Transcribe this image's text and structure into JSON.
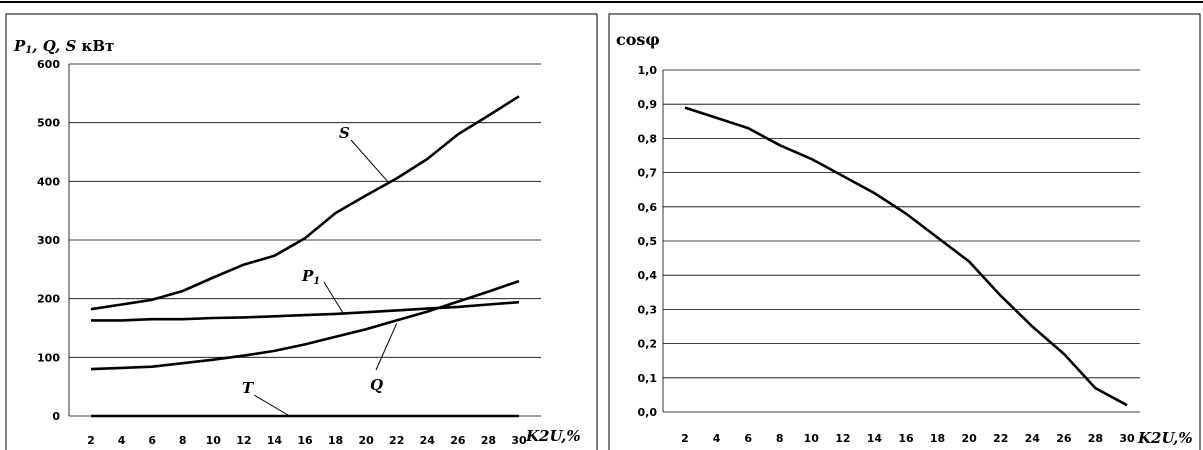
{
  "chart_data": [
    {
      "type": "line",
      "title": "кВт",
      "title_symbols": [
        "P",
        "1",
        ", Q, S "
      ],
      "xlabel": "K2U,%",
      "ylabel": "",
      "x": [
        2,
        4,
        6,
        8,
        10,
        12,
        14,
        16,
        18,
        20,
        22,
        24,
        26,
        28,
        30
      ],
      "xticks": [
        "2",
        "4",
        "6",
        "8",
        "10",
        "12",
        "14",
        "16",
        "18",
        "20",
        "22",
        "24",
        "26",
        "28",
        "30"
      ],
      "ylim": [
        0,
        600
      ],
      "yticks": [
        "0",
        "100",
        "200",
        "300",
        "400",
        "500",
        "600"
      ],
      "grid": true,
      "series": [
        {
          "name": "S",
          "values": [
            182,
            190,
            198,
            213,
            236,
            258,
            273,
            303,
            346,
            376,
            405,
            438,
            480,
            512,
            545
          ]
        },
        {
          "name": "P",
          "subscript": "1",
          "values": [
            163,
            163,
            165,
            165,
            167,
            168,
            170,
            172,
            174,
            177,
            180,
            183,
            186,
            190,
            194
          ]
        },
        {
          "name": "Q",
          "values": [
            80,
            82,
            84,
            90,
            96,
            103,
            111,
            122,
            135,
            148,
            163,
            178,
            195,
            212,
            230
          ]
        },
        {
          "name": "T",
          "values": [
            0,
            0,
            0,
            0,
            0,
            0,
            0,
            0,
            0,
            0,
            0,
            0,
            0,
            0,
            0
          ]
        }
      ]
    },
    {
      "type": "line",
      "title": "cosφ",
      "xlabel": "K2U,%",
      "ylabel": "",
      "x": [
        2,
        4,
        6,
        8,
        10,
        12,
        14,
        16,
        18,
        20,
        22,
        24,
        26,
        28,
        30
      ],
      "xticks": [
        "2",
        "4",
        "6",
        "8",
        "10",
        "12",
        "14",
        "16",
        "18",
        "20",
        "22",
        "24",
        "26",
        "28",
        "30"
      ],
      "ylim": [
        0,
        1
      ],
      "yticks": [
        "0,0",
        "0,1",
        "0,2",
        "0,3",
        "0,4",
        "0,5",
        "0,6",
        "0,7",
        "0,8",
        "0,9",
        "1,0"
      ],
      "grid": true,
      "series": [
        {
          "values": [
            0.89,
            0.86,
            0.83,
            0.78,
            0.74,
            0.69,
            0.64,
            0.58,
            0.51,
            0.44,
            0.34,
            0.25,
            0.17,
            0.07,
            0.02
          ]
        }
      ]
    }
  ]
}
